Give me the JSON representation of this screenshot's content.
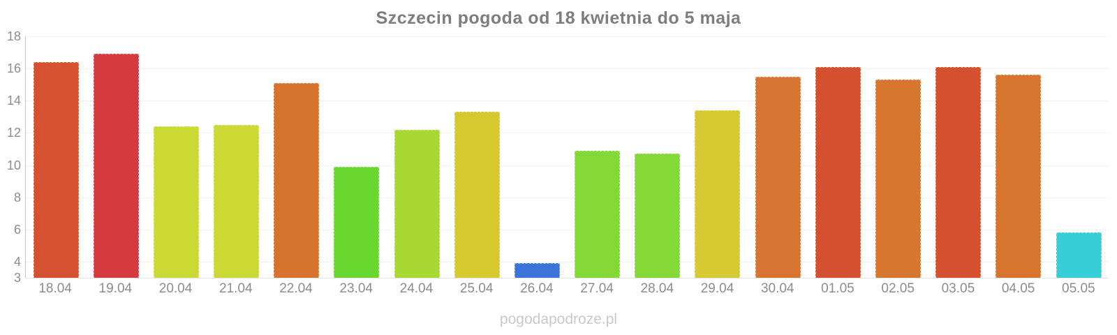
{
  "header": {
    "title": "Szczecin pogoda od 18 kwietnia do 5 maja"
  },
  "watermark": {
    "text": "pogodapodroze.pl"
  },
  "chart_data": {
    "type": "bar",
    "title": "Szczecin pogoda od 18 kwietnia do 5 maja",
    "xlabel": "",
    "ylabel": "",
    "categories": [
      "18.04",
      "19.04",
      "20.04",
      "21.04",
      "22.04",
      "23.04",
      "24.04",
      "25.04",
      "26.04",
      "27.04",
      "28.04",
      "29.04",
      "30.04",
      "01.05",
      "02.05",
      "03.05",
      "04.05",
      "05.05"
    ],
    "values": [
      16.4,
      16.9,
      12.4,
      12.5,
      15.1,
      9.9,
      12.2,
      13.3,
      3.9,
      10.9,
      10.7,
      13.4,
      15.5,
      16.1,
      15.3,
      16.1,
      15.6,
      5.8
    ],
    "bar_colors": [
      "#d5512f",
      "#d43a3e",
      "#ccd834",
      "#ccd834",
      "#d6732f",
      "#68d72f",
      "#a9d832",
      "#d6c92f",
      "#3a74d8",
      "#84d936",
      "#84d936",
      "#d7c932",
      "#d77432",
      "#d5502e",
      "#d7772f",
      "#d5502e",
      "#d7742f",
      "#38ced8"
    ],
    "ylim": [
      3,
      18
    ],
    "yticks": [
      18,
      16,
      14,
      12,
      10,
      8,
      6,
      4,
      3
    ],
    "grid": "dotted-horizontal",
    "legend": "none",
    "colors_meaning": {
      "red": "#d43a3e",
      "red_orange": "#d5502e",
      "orange": "#d7742f",
      "gold": "#d7c932",
      "yellow_green": "#ccd834",
      "light_green": "#a9d832",
      "green": "#84d936",
      "bright_green": "#68d72f",
      "cyan": "#38ced8",
      "blue": "#3a74d8"
    }
  }
}
